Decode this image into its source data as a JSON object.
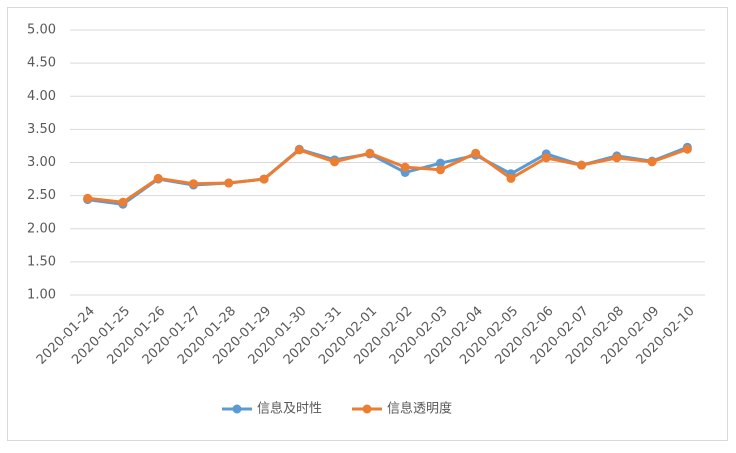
{
  "chart_data": {
    "type": "line",
    "categories": [
      "2020-01-24",
      "2020-01-25",
      "2020-01-26",
      "2020-01-27",
      "2020-01-28",
      "2020-01-29",
      "2020-01-30",
      "2020-01-31",
      "2020-02-01",
      "2020-02-02",
      "2020-02-03",
      "2020-02-04",
      "2020-02-05",
      "2020-02-06",
      "2020-02-07",
      "2020-02-08",
      "2020-02-09",
      "2020-02-10"
    ],
    "series": [
      {
        "name": "信息及时性",
        "color": "#5b9bd5",
        "values": [
          2.44,
          2.37,
          2.75,
          2.66,
          2.69,
          2.75,
          3.2,
          3.04,
          3.13,
          2.85,
          2.99,
          3.11,
          2.83,
          3.13,
          2.96,
          3.1,
          3.02,
          3.23
        ]
      },
      {
        "name": "信息透明度",
        "color": "#ed7d31",
        "values": [
          2.46,
          2.4,
          2.76,
          2.68,
          2.69,
          2.75,
          3.19,
          3.01,
          3.14,
          2.93,
          2.89,
          3.14,
          2.76,
          3.07,
          2.96,
          3.07,
          3.01,
          3.2
        ]
      }
    ],
    "ylim": [
      1,
      5
    ],
    "yticks": [
      {
        "value": 1,
        "label": "1.00"
      },
      {
        "value": 1.5,
        "label": "1.50"
      },
      {
        "value": 2,
        "label": "2.00"
      },
      {
        "value": 2.5,
        "label": "2.50"
      },
      {
        "value": 3,
        "label": "3.00"
      },
      {
        "value": 3.5,
        "label": "3.50"
      },
      {
        "value": 4,
        "label": "4.00"
      },
      {
        "value": 4.5,
        "label": "4.50"
      },
      {
        "value": 5,
        "label": "5.00"
      }
    ],
    "grid": true,
    "legend": "bottom"
  }
}
